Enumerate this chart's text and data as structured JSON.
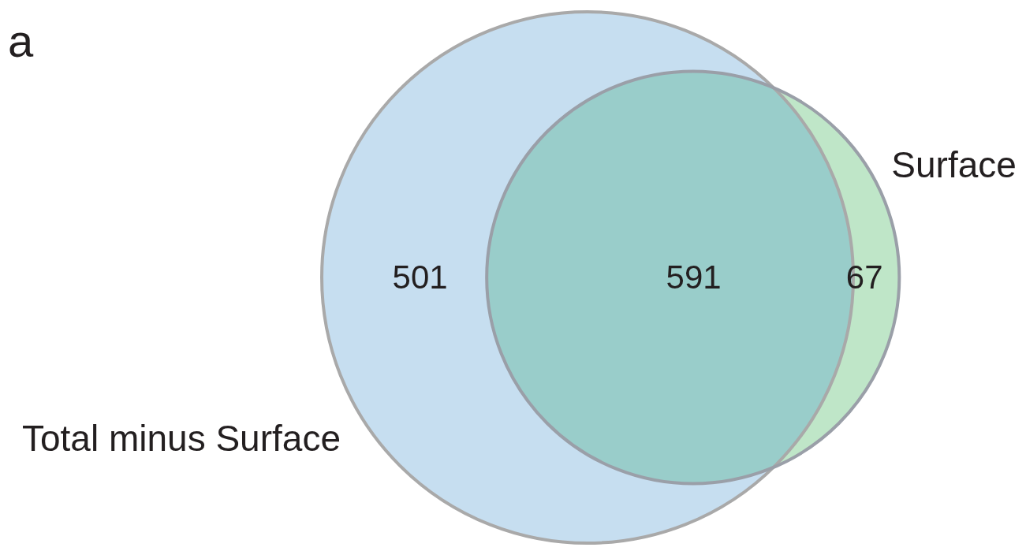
{
  "chart_data": {
    "type": "other",
    "annotations": [
      "a",
      "Total minus Surface",
      "Surface"
    ],
    "categories": [
      null,
      null,
      null
    ],
    "values": [
      501,
      591,
      67
    ],
    "colors": [
      "#c6def0",
      "#99cdca",
      "#bfe6c8"
    ],
    "data_labels": true
  }
}
